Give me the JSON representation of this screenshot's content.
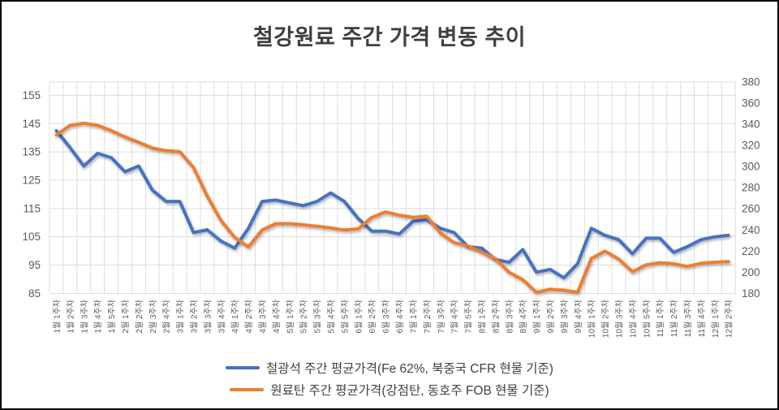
{
  "title": "철강원료 주간 가격 변동 추이",
  "legend": {
    "items": [
      {
        "label": "철광석 주간 평균가격(Fe 62%, 북중국 CFR 현물 기준)",
        "color": "#4472C4"
      },
      {
        "label": "원료탄 주간 평균가격(강점탄, 동호주 FOB 현물 기준)",
        "color": "#ED7D31"
      }
    ]
  },
  "colors": {
    "iron_ore_line": "#4472C4",
    "coking_coal_line": "#ED7D31",
    "gridline": "#DCDCDC",
    "axis_text": "#595959",
    "title_text": "#3F3F3F"
  },
  "chart_data": {
    "type": "line",
    "title": "철강원료 주간 가격 변동 추이",
    "grid": true,
    "legend_position": "bottom",
    "categories": [
      "1월 1주차",
      "1월 2주차",
      "1월 3주차",
      "1월 4주차",
      "1월 5주차",
      "2월 1주차",
      "2월 2주차",
      "2월 3주차",
      "2월 4주차",
      "3월 1주차",
      "3월 2주차",
      "3월 3주차",
      "3월 4주차",
      "4월 1주차",
      "4월 2주차",
      "4월 3주차",
      "4월 4주차",
      "5월 1주차",
      "5월 2주차",
      "5월 3주차",
      "5월 4주차",
      "5월 5주차",
      "6월 1주차",
      "6월 2주차",
      "6월 3주차",
      "6월 4주차",
      "7월 1주차",
      "7월 2주차",
      "7월 3주차",
      "7월 4주차",
      "7월 5주차",
      "8월 1주차",
      "8월 2주차",
      "8월 3주차",
      "8월 4주차",
      "9월 1주차",
      "9월 2주차",
      "9월 3주차",
      "9월 4주차",
      "10월 1주차",
      "10월 2주차",
      "10월 3주차",
      "10월 4주차",
      "10월 5주차",
      "11월 1주차",
      "11월 2주차",
      "11월 3주차",
      "11월 4주차",
      "12월 1주차",
      "12월 2주차"
    ],
    "series": [
      {
        "name": "철광석 주간 평균가격(Fe 62%, 북중국 CFR 현물 기준)",
        "axis": "left",
        "color": "#4472C4",
        "values": [
          142.5,
          136.5,
          130,
          134.5,
          133,
          128,
          130,
          121.5,
          117.5,
          117.5,
          106.5,
          107.5,
          103.5,
          101,
          108,
          117.5,
          118,
          117,
          116,
          117.5,
          120.5,
          117.5,
          111.5,
          107,
          107,
          106,
          110.5,
          111,
          108,
          106.5,
          101.5,
          101,
          97,
          96,
          100.5,
          92.5,
          93.5,
          90.5,
          95.5,
          108,
          105.5,
          104,
          99,
          104.5,
          104.5,
          99.5,
          101.5,
          104,
          105,
          105.5
        ]
      },
      {
        "name": "원료탄 주간 평균가격(강점탄, 동호주 FOB 현물 기준)",
        "axis": "right",
        "color": "#ED7D31",
        "values": [
          330,
          339,
          341,
          339,
          334,
          328,
          323,
          317.5,
          315,
          314,
          299,
          272,
          249,
          233,
          224,
          240,
          246,
          246,
          245,
          243.5,
          242,
          240,
          241,
          252,
          257,
          254,
          252,
          253,
          237,
          228,
          225,
          219,
          213,
          200,
          193,
          181,
          184,
          183,
          181,
          213,
          220,
          212.5,
          200.5,
          207,
          209,
          208,
          205.5,
          208.5,
          209.5,
          210
        ]
      }
    ],
    "left_axis": {
      "min": 85,
      "max": 155,
      "step": 10,
      "ticks": [
        155,
        145,
        135,
        125,
        115,
        105,
        95,
        85
      ]
    },
    "right_axis": {
      "min": 180,
      "max": 380,
      "step": 20,
      "ticks": [
        380,
        360,
        340,
        320,
        300,
        280,
        260,
        240,
        220,
        200,
        180
      ]
    }
  }
}
